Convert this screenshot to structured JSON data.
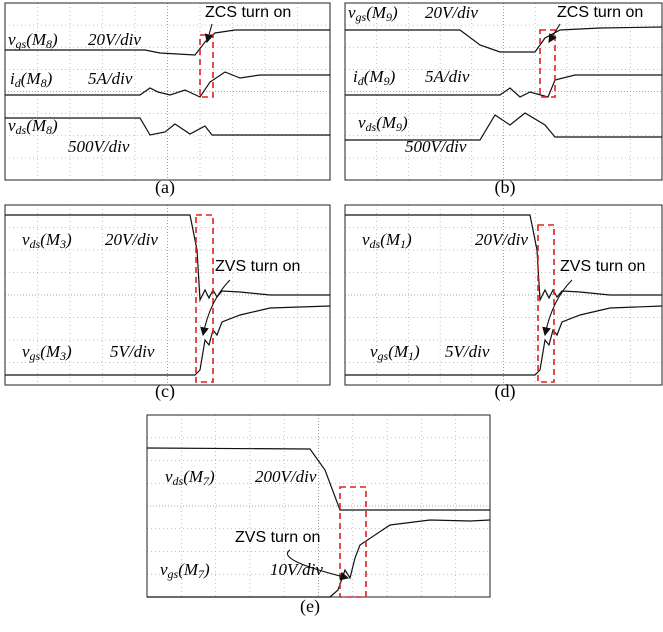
{
  "panels": [
    {
      "caption": "(a)",
      "annotation": "ZCS turn on",
      "traces": [
        {
          "label": [
            {
              "text": "v"
            },
            {
              "sub": "gs"
            },
            {
              "text": "(M"
            },
            {
              "sub": "8"
            },
            {
              "text": ")"
            }
          ],
          "scale": "20V/div"
        },
        {
          "label": [
            {
              "text": "i"
            },
            {
              "sub": "d"
            },
            {
              "text": "(M"
            },
            {
              "sub": "8"
            },
            {
              "text": ")"
            }
          ],
          "scale": "5A/div"
        },
        {
          "label": [
            {
              "text": "v"
            },
            {
              "sub": "ds"
            },
            {
              "text": "(M"
            },
            {
              "sub": "8"
            },
            {
              "text": ")"
            }
          ],
          "scale": "500V/div"
        }
      ]
    },
    {
      "caption": "(b)",
      "annotation": "ZCS turn on",
      "traces": [
        {
          "label": [
            {
              "text": "v"
            },
            {
              "sub": "gs"
            },
            {
              "text": "(M"
            },
            {
              "sub": "9"
            },
            {
              "text": ")"
            }
          ],
          "scale": "20V/div"
        },
        {
          "label": [
            {
              "text": "i"
            },
            {
              "sub": "d"
            },
            {
              "text": "(M"
            },
            {
              "sub": "9"
            },
            {
              "text": ")"
            }
          ],
          "scale": "5A/div"
        },
        {
          "label": [
            {
              "text": "v"
            },
            {
              "sub": "ds"
            },
            {
              "text": "(M"
            },
            {
              "sub": "9"
            },
            {
              "text": ")"
            }
          ],
          "scale": "500V/div"
        }
      ]
    },
    {
      "caption": "(c)",
      "annotation": "ZVS turn on",
      "traces": [
        {
          "label": [
            {
              "text": "v"
            },
            {
              "sub": "ds"
            },
            {
              "text": "(M"
            },
            {
              "sub": "3"
            },
            {
              "text": ")"
            }
          ],
          "scale": "20V/div"
        },
        {
          "label": [
            {
              "text": "v"
            },
            {
              "sub": "gs"
            },
            {
              "text": "(M"
            },
            {
              "sub": "3"
            },
            {
              "text": ")"
            }
          ],
          "scale": "5V/div"
        }
      ]
    },
    {
      "caption": "(d)",
      "annotation": "ZVS turn on",
      "traces": [
        {
          "label": [
            {
              "text": "v"
            },
            {
              "sub": "ds"
            },
            {
              "text": "(M"
            },
            {
              "sub": "1"
            },
            {
              "text": ")"
            }
          ],
          "scale": "20V/div"
        },
        {
          "label": [
            {
              "text": "v"
            },
            {
              "sub": "gs"
            },
            {
              "text": "(M"
            },
            {
              "sub": "1"
            },
            {
              "text": ")"
            }
          ],
          "scale": "5V/div"
        }
      ]
    },
    {
      "caption": "(e)",
      "annotation": "ZVS turn on",
      "traces": [
        {
          "label": [
            {
              "text": "v"
            },
            {
              "sub": "ds"
            },
            {
              "text": "(M"
            },
            {
              "sub": "7"
            },
            {
              "text": ")"
            }
          ],
          "scale": "200V/div"
        },
        {
          "label": [
            {
              "text": "v"
            },
            {
              "sub": "gs"
            },
            {
              "text": "(M"
            },
            {
              "sub": "7"
            },
            {
              "text": ")"
            }
          ],
          "scale": "10V/div"
        }
      ]
    }
  ]
}
